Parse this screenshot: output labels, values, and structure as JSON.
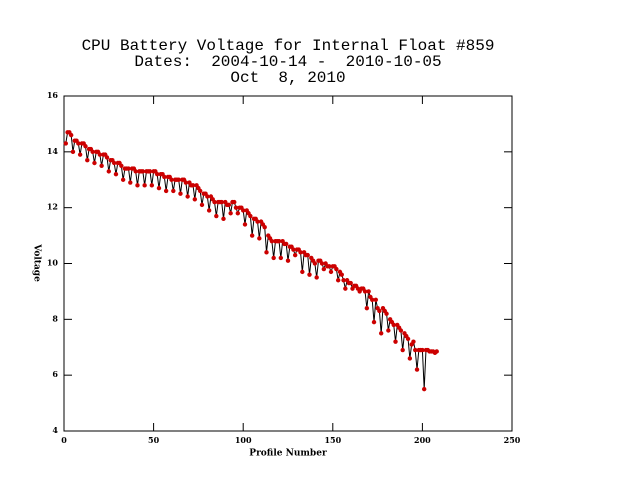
{
  "chart_data": {
    "type": "line",
    "title": [
      "CPU Battery Voltage for Internal Float #859",
      "Dates:  2004-10-14 -  2010-10-05",
      "Oct  8, 2010"
    ],
    "xlabel": "Profile Number",
    "ylabel": "Voltage",
    "xlim": [
      0,
      250
    ],
    "xticks": [
      0,
      50,
      100,
      150,
      200,
      250
    ],
    "ylim": [
      4,
      16
    ],
    "yticks": [
      4,
      6,
      8,
      10,
      12,
      14,
      16
    ],
    "line_color": "#000000",
    "marker_color": "#cc0000",
    "x": [
      1,
      2,
      3,
      4,
      5,
      6,
      7,
      8,
      9,
      10,
      11,
      12,
      13,
      14,
      15,
      16,
      17,
      18,
      19,
      20,
      21,
      22,
      23,
      24,
      25,
      26,
      27,
      28,
      29,
      30,
      31,
      32,
      33,
      34,
      35,
      36,
      37,
      38,
      39,
      40,
      41,
      42,
      43,
      44,
      45,
      46,
      47,
      48,
      49,
      50,
      51,
      52,
      53,
      54,
      55,
      56,
      57,
      58,
      59,
      60,
      61,
      62,
      63,
      64,
      65,
      66,
      67,
      68,
      69,
      70,
      71,
      72,
      73,
      74,
      75,
      76,
      77,
      78,
      79,
      80,
      81,
      82,
      83,
      84,
      85,
      86,
      87,
      88,
      89,
      90,
      91,
      92,
      93,
      94,
      95,
      96,
      97,
      98,
      99,
      100,
      101,
      102,
      103,
      104,
      105,
      106,
      107,
      108,
      109,
      110,
      111,
      112,
      113,
      114,
      115,
      116,
      117,
      118,
      119,
      120,
      121,
      122,
      123,
      124,
      125,
      126,
      127,
      128,
      129,
      130,
      131,
      132,
      133,
      134,
      135,
      136,
      137,
      138,
      139,
      140,
      141,
      142,
      143,
      144,
      145,
      146,
      147,
      148,
      149,
      150,
      151,
      152,
      153,
      154,
      155,
      156,
      157,
      158,
      159,
      160,
      161,
      162,
      163,
      164,
      165,
      166,
      167,
      168,
      169,
      170,
      171,
      172,
      173,
      174,
      175,
      176,
      177,
      178,
      179,
      180,
      181,
      182,
      183,
      184,
      185,
      186,
      187,
      188,
      189,
      190,
      191,
      192,
      193,
      194,
      195,
      196,
      197,
      198,
      199,
      200,
      201,
      202,
      203,
      204,
      205,
      206,
      207,
      208
    ],
    "values": [
      14.3,
      14.7,
      14.7,
      14.6,
      14.0,
      14.4,
      14.4,
      14.3,
      13.9,
      14.3,
      14.3,
      14.2,
      13.7,
      14.1,
      14.1,
      14.0,
      13.6,
      14.0,
      14.0,
      13.9,
      13.5,
      13.9,
      13.9,
      13.8,
      13.3,
      13.7,
      13.7,
      13.6,
      13.2,
      13.6,
      13.6,
      13.5,
      13.0,
      13.4,
      13.4,
      13.4,
      12.9,
      13.4,
      13.4,
      13.3,
      12.8,
      13.3,
      13.3,
      13.3,
      12.8,
      13.3,
      13.3,
      13.3,
      12.8,
      13.3,
      13.3,
      13.2,
      12.7,
      13.2,
      13.2,
      13.1,
      12.6,
      13.1,
      13.1,
      13.0,
      12.6,
      13.0,
      13.0,
      13.0,
      12.5,
      13.0,
      13.0,
      12.9,
      12.4,
      12.9,
      12.8,
      12.8,
      12.3,
      12.8,
      12.7,
      12.6,
      12.1,
      12.5,
      12.5,
      12.4,
      11.9,
      12.4,
      12.3,
      12.2,
      11.7,
      12.2,
      12.2,
      12.2,
      11.6,
      12.2,
      12.1,
      12.1,
      11.8,
      12.2,
      12.2,
      12.0,
      11.8,
      12.0,
      12.0,
      11.9,
      11.4,
      11.9,
      11.8,
      11.7,
      11.0,
      11.6,
      11.6,
      11.5,
      10.9,
      11.5,
      11.4,
      11.3,
      10.4,
      11.0,
      10.9,
      10.8,
      10.2,
      10.8,
      10.8,
      10.8,
      10.2,
      10.8,
      10.7,
      10.7,
      10.1,
      10.6,
      10.6,
      10.5,
      10.3,
      10.5,
      10.5,
      10.4,
      9.7,
      10.4,
      10.3,
      10.3,
      9.6,
      10.2,
      10.1,
      10.0,
      9.5,
      10.1,
      10.1,
      10.0,
      9.8,
      10.0,
      9.9,
      9.9,
      9.7,
      9.9,
      9.9,
      9.8,
      9.4,
      9.7,
      9.6,
      9.4,
      9.1,
      9.4,
      9.3,
      9.3,
      9.1,
      9.2,
      9.2,
      9.1,
      9.0,
      9.1,
      9.1,
      9.0,
      8.4,
      9.0,
      8.8,
      8.7,
      7.9,
      8.7,
      8.4,
      8.3,
      7.5,
      8.4,
      8.3,
      8.2,
      7.6,
      8.0,
      7.9,
      7.8,
      7.2,
      7.8,
      7.7,
      7.6,
      6.9,
      7.5,
      7.4,
      7.3,
      6.6,
      7.1,
      7.2,
      6.9,
      6.2,
      6.9,
      6.9,
      6.9,
      5.5,
      6.9,
      6.9,
      6.85,
      6.85,
      6.85,
      6.8,
      6.85
    ]
  }
}
